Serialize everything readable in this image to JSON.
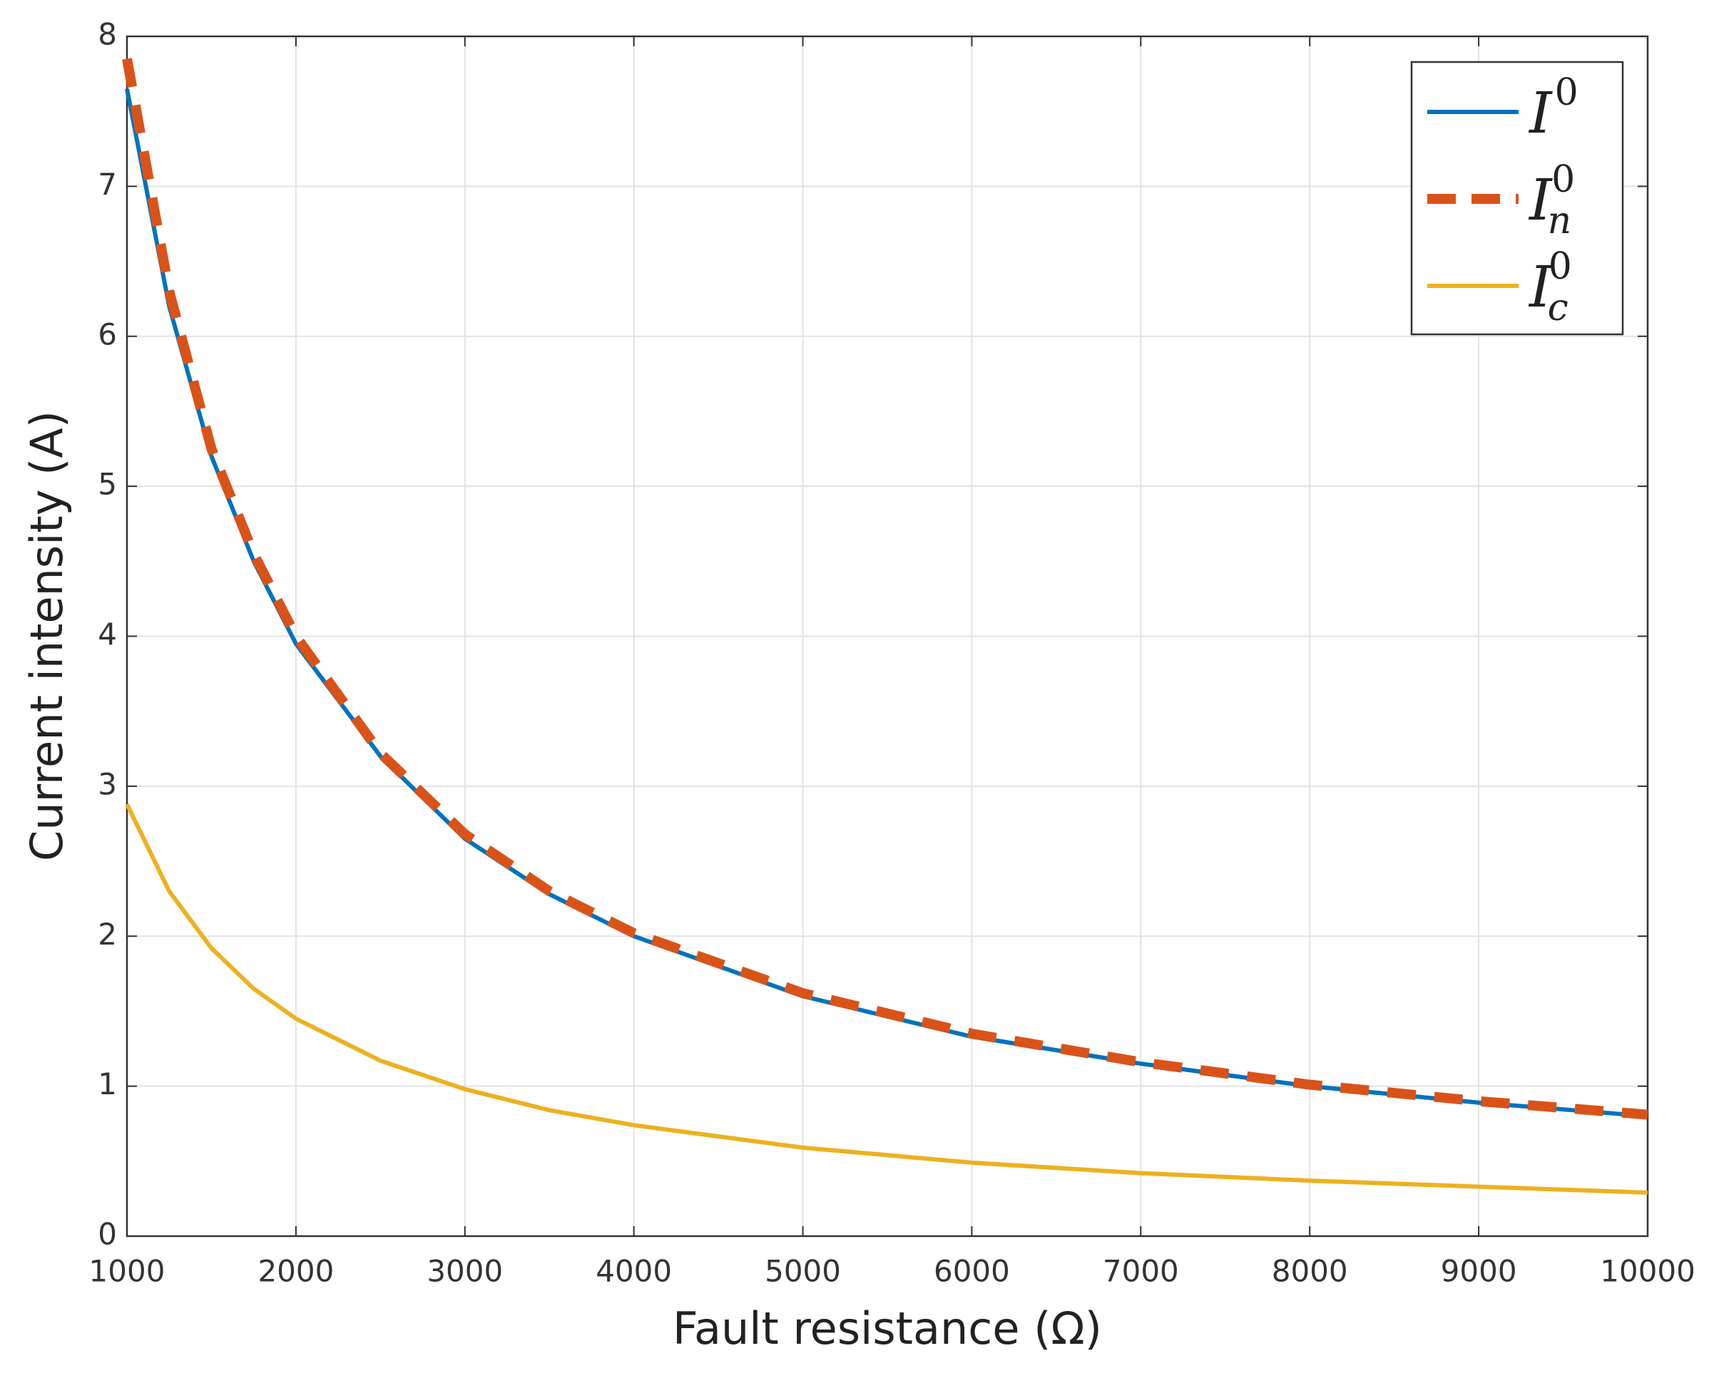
{
  "chart_data": {
    "type": "line",
    "xlabel": "Fault resistance (Ω)",
    "ylabel": "Current intensity (A)",
    "x": [
      1000,
      1250,
      1500,
      1750,
      2000,
      2500,
      3000,
      3500,
      4000,
      5000,
      6000,
      7000,
      8000,
      9000,
      10000
    ],
    "series": [
      {
        "name": "I0",
        "color": "#0072bd",
        "dash": false,
        "values": [
          7.65,
          6.2,
          5.2,
          4.5,
          3.95,
          3.2,
          2.65,
          2.28,
          2.0,
          1.6,
          1.33,
          1.15,
          1.0,
          0.89,
          0.8
        ]
      },
      {
        "name": "In0",
        "color": "#d95319",
        "dash": true,
        "values": [
          7.85,
          6.3,
          5.25,
          4.55,
          4.0,
          3.22,
          2.68,
          2.3,
          2.02,
          1.62,
          1.35,
          1.16,
          1.01,
          0.9,
          0.81
        ]
      },
      {
        "name": "Ic0",
        "color": "#edb120",
        "dash": false,
        "values": [
          2.88,
          2.3,
          1.92,
          1.65,
          1.45,
          1.17,
          0.98,
          0.84,
          0.74,
          0.59,
          0.49,
          0.42,
          0.37,
          0.33,
          0.29
        ]
      }
    ],
    "xlim": [
      1000,
      10000
    ],
    "xticks": [
      1000,
      2000,
      3000,
      4000,
      5000,
      6000,
      7000,
      8000,
      9000,
      10000
    ],
    "ylim": [
      0,
      8
    ],
    "yticks": [
      0,
      1,
      2,
      3,
      4,
      5,
      6,
      7,
      8
    ],
    "grid": true,
    "legend": "upper right"
  }
}
